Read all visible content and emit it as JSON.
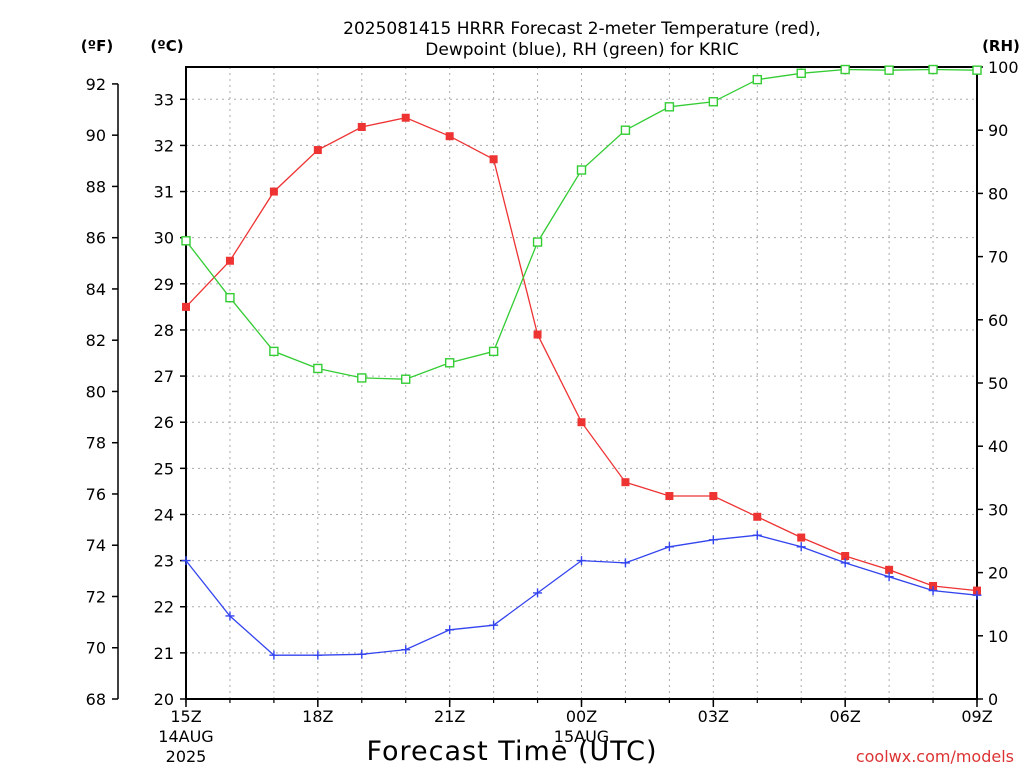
{
  "chart_data": {
    "type": "line",
    "title_line1": "2025081415 HRRR Forecast 2-meter Temperature (red),",
    "title_line2": "Dewpoint (blue), RH (green) for KRIC",
    "xlabel": "Forecast Time (UTC)",
    "left_outer_axis_label": "(ºF)",
    "left_inner_axis_label": "(ºC)",
    "right_axis_label": "(RH)",
    "watermark": "coolwx.com/models",
    "x_hours": [
      0,
      1,
      2,
      3,
      4,
      5,
      6,
      7,
      8,
      9,
      10,
      11,
      12,
      13,
      14,
      15,
      16,
      17,
      18
    ],
    "x_ticks": [
      {
        "hour": 0,
        "label": "15Z",
        "label2": "14AUG",
        "label3": "2025"
      },
      {
        "hour": 3,
        "label": "18Z"
      },
      {
        "hour": 6,
        "label": "21Z"
      },
      {
        "hour": 9,
        "label": "00Z",
        "label2": "15AUG"
      },
      {
        "hour": 12,
        "label": "03Z"
      },
      {
        "hour": 15,
        "label": "06Z"
      },
      {
        "hour": 18,
        "label": "09Z"
      }
    ],
    "celsius_range": [
      20,
      33.7
    ],
    "celsius_ticks": [
      "20",
      "21",
      "22",
      "23",
      "24",
      "25",
      "26",
      "27",
      "28",
      "29",
      "30",
      "31",
      "32",
      "33"
    ],
    "fahrenheit_ticks": [
      "68",
      "70",
      "72",
      "74",
      "76",
      "78",
      "80",
      "82",
      "84",
      "86",
      "88",
      "90",
      "92"
    ],
    "rh_range": [
      0,
      100
    ],
    "rh_ticks": [
      "0",
      "10",
      "20",
      "30",
      "40",
      "50",
      "60",
      "70",
      "80",
      "90",
      "100"
    ],
    "grid": true,
    "series": [
      {
        "id": "temperature",
        "color": "#ee3333",
        "marker": "filled-square",
        "axis": "celsius",
        "values": [
          28.5,
          29.5,
          31.0,
          31.9,
          32.4,
          32.6,
          32.2,
          31.7,
          27.9,
          26.0,
          24.7,
          24.4,
          24.4,
          23.95,
          23.5,
          23.1,
          22.8,
          22.45,
          22.35
        ]
      },
      {
        "id": "dewpoint",
        "color": "#3344ee",
        "marker": "plus",
        "axis": "celsius",
        "values": [
          23.0,
          21.8,
          20.95,
          20.95,
          20.97,
          21.07,
          21.5,
          21.6,
          22.3,
          23.0,
          22.95,
          23.3,
          23.45,
          23.55,
          23.3,
          22.95,
          22.65,
          22.35,
          22.25
        ]
      },
      {
        "id": "rh",
        "color": "#33cc33",
        "marker": "open-square",
        "axis": "rh",
        "values": [
          72.5,
          63.5,
          55.0,
          52.3,
          50.8,
          50.6,
          53.2,
          55.0,
          72.3,
          83.7,
          90.0,
          93.7,
          94.5,
          98.0,
          99.0,
          99.6,
          99.5,
          99.6,
          99.5
        ]
      }
    ]
  }
}
